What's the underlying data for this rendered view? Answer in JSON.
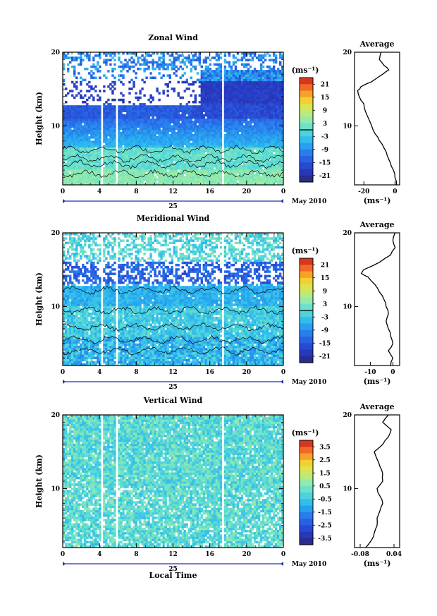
{
  "chart_data": [
    {
      "type": "heatmap",
      "title": "Zonal Wind",
      "ylabel": "Height (km)",
      "y_ticks": [
        "10",
        "20"
      ],
      "ylim": [
        2,
        20
      ],
      "x_ticks": [
        "0",
        "4",
        "8",
        "12",
        "16",
        "20",
        "0"
      ],
      "xlim": [
        0,
        24
      ],
      "date_day": "25",
      "date_month_year": "May 2010",
      "colorbar_unit": "(ms⁻¹)",
      "colorbar_ticks": [
        "21",
        "15",
        "9",
        "3",
        "-3",
        "-9",
        "-15",
        "-21"
      ],
      "colorbar_range": [
        -24,
        24
      ],
      "profile": {
        "title": "Average",
        "xlabel": "(ms⁻¹)",
        "x_ticks": [
          "-20",
          "0"
        ],
        "xlim": [
          -26,
          3
        ],
        "y_ticks": [
          "10",
          "20"
        ],
        "height_km": [
          2.0,
          3.0,
          4.0,
          5.0,
          6.0,
          7.0,
          8.0,
          9.0,
          10.0,
          11.0,
          12.0,
          13.0,
          14.0,
          14.8,
          15.3,
          16.0,
          17.0,
          17.6,
          18.2,
          19.0,
          20.0
        ],
        "wind": [
          1,
          0,
          -1,
          -3,
          -5,
          -7,
          -10,
          -13,
          -15,
          -17,
          -19,
          -20,
          -23,
          -24,
          -22,
          -15,
          -8,
          -4,
          -7,
          -10,
          -9
        ]
      }
    },
    {
      "type": "heatmap",
      "title": "Meridional Wind",
      "ylabel": "Height (km)",
      "y_ticks": [
        "10",
        "20"
      ],
      "ylim": [
        2,
        20
      ],
      "x_ticks": [
        "0",
        "4",
        "8",
        "12",
        "16",
        "20",
        "0"
      ],
      "xlim": [
        0,
        24
      ],
      "date_day": "25",
      "date_month_year": "May 2010",
      "colorbar_unit": "(ms⁻¹)",
      "colorbar_ticks": [
        "21",
        "15",
        "9",
        "3",
        "-3",
        "-9",
        "-15",
        "-21"
      ],
      "colorbar_range": [
        -24,
        24
      ],
      "profile": {
        "title": "Average",
        "xlabel": "(ms⁻¹)",
        "x_ticks": [
          "-10",
          "0"
        ],
        "xlim": [
          -17,
          3
        ],
        "y_ticks": [
          "10",
          "20"
        ],
        "height_km": [
          2.0,
          3.0,
          4.0,
          5.0,
          6.0,
          7.0,
          8.0,
          9.0,
          10.0,
          11.0,
          12.0,
          13.0,
          14.0,
          14.5,
          15.0,
          16.0,
          17.0,
          18.0,
          19.0,
          20.0
        ],
        "wind": [
          -1,
          0,
          -2,
          0,
          -1,
          -2,
          -3,
          -2,
          -3,
          -4,
          -6,
          -8,
          -11,
          -14,
          -13,
          -6,
          -1,
          1,
          0,
          1
        ]
      }
    },
    {
      "type": "heatmap",
      "title": "Vertical Wind",
      "ylabel": "Height (km)",
      "xlabel": "Local Time",
      "y_ticks": [
        "10",
        "20"
      ],
      "ylim": [
        2,
        20
      ],
      "x_ticks": [
        "0",
        "4",
        "8",
        "12",
        "16",
        "20",
        "0"
      ],
      "xlim": [
        0,
        24
      ],
      "date_day": "25",
      "date_month_year": "May 2010",
      "colorbar_unit": "(ms⁻¹)",
      "colorbar_ticks": [
        "3.5",
        "2.5",
        "1.5",
        "0.5",
        "-0.5",
        "-1.5",
        "-2.5",
        "-3.5"
      ],
      "colorbar_range": [
        -4,
        4
      ],
      "profile": {
        "title": "Average",
        "xlabel": "(ms⁻¹)",
        "x_ticks": [
          "-0.08",
          "0.04"
        ],
        "xlim": [
          -0.1,
          0.06
        ],
        "y_ticks": [
          "10",
          "20"
        ],
        "height_km": [
          2.0,
          3.0,
          4.0,
          5.0,
          6.0,
          7.0,
          8.0,
          9.0,
          10.0,
          11.0,
          12.0,
          13.0,
          14.0,
          15.0,
          16.0,
          17.0,
          18.0,
          19.0,
          20.0
        ],
        "wind": [
          -0.06,
          -0.04,
          -0.03,
          -0.02,
          -0.02,
          -0.01,
          0.0,
          -0.01,
          -0.02,
          0.0,
          0.0,
          -0.01,
          -0.02,
          -0.03,
          0.0,
          0.02,
          0.03,
          0.0,
          0.02
        ]
      }
    }
  ]
}
